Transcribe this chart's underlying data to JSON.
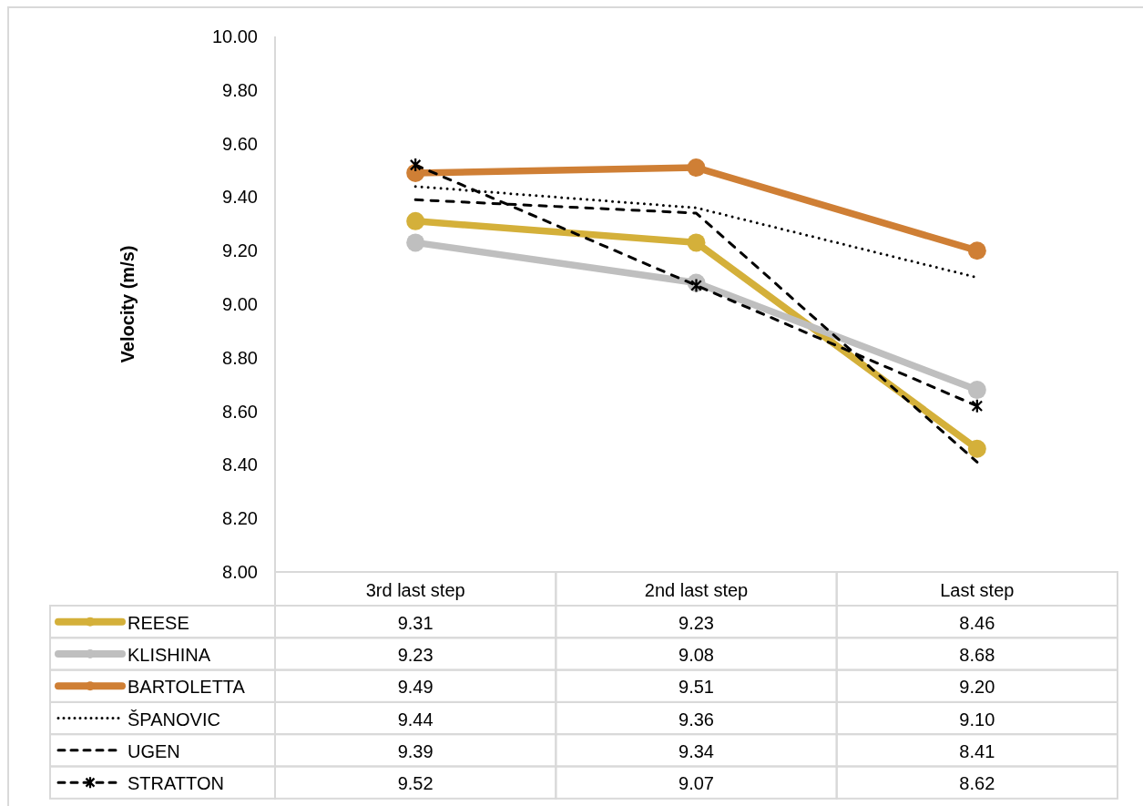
{
  "chart_data": {
    "type": "line",
    "ylabel": "Velocity (m/s)",
    "categories": [
      "3rd last step",
      "2nd last step",
      "Last step"
    ],
    "ylim": [
      8,
      10
    ],
    "yticks": [
      {
        "value": 8,
        "label": "8.00"
      },
      {
        "value": 8.2,
        "label": "8.20"
      },
      {
        "value": 8.4,
        "label": "8.40"
      },
      {
        "value": 8.6,
        "label": "8.60"
      },
      {
        "value": 8.8,
        "label": "8.80"
      },
      {
        "value": 9,
        "label": "9.00"
      },
      {
        "value": 9.2,
        "label": "9.20"
      },
      {
        "value": 9.4,
        "label": "9.40"
      },
      {
        "value": 9.6,
        "label": "9.60"
      },
      {
        "value": 9.8,
        "label": "9.80"
      },
      {
        "value": 10,
        "label": "10.00"
      }
    ],
    "legend": "bottom",
    "series": [
      {
        "name": "REESE",
        "color": "#d4b03a",
        "values": [
          9.31,
          9.23,
          8.46
        ],
        "value_labels": [
          "9.31",
          "9.23",
          "8.46"
        ],
        "marker": "circle",
        "line_style": "solid"
      },
      {
        "name": "KLISHINA",
        "color": "#bfbfbf",
        "values": [
          9.23,
          9.08,
          8.68
        ],
        "value_labels": [
          "9.23",
          "9.08",
          "8.68"
        ],
        "marker": "circle",
        "line_style": "solid"
      },
      {
        "name": "BARTOLETTA",
        "color": "#cf7f35",
        "values": [
          9.49,
          9.51,
          9.2
        ],
        "value_labels": [
          "9.49",
          "9.51",
          "9.20"
        ],
        "marker": "circle",
        "line_style": "solid"
      },
      {
        "name": "ŠPANOVIC",
        "color": "#000000",
        "values": [
          9.44,
          9.36,
          9.1
        ],
        "value_labels": [
          "9.44",
          "9.36",
          "9.10"
        ],
        "marker": "none",
        "line_style": "dotted"
      },
      {
        "name": "UGEN",
        "color": "#000000",
        "values": [
          9.39,
          9.34,
          8.41
        ],
        "value_labels": [
          "9.39",
          "9.34",
          "8.41"
        ],
        "marker": "none",
        "line_style": "dashed"
      },
      {
        "name": "STRATTON",
        "color": "#000000",
        "values": [
          9.52,
          9.07,
          8.62
        ],
        "value_labels": [
          "9.52",
          "9.07",
          "8.62"
        ],
        "marker": "cross",
        "line_style": "dashed"
      }
    ]
  }
}
